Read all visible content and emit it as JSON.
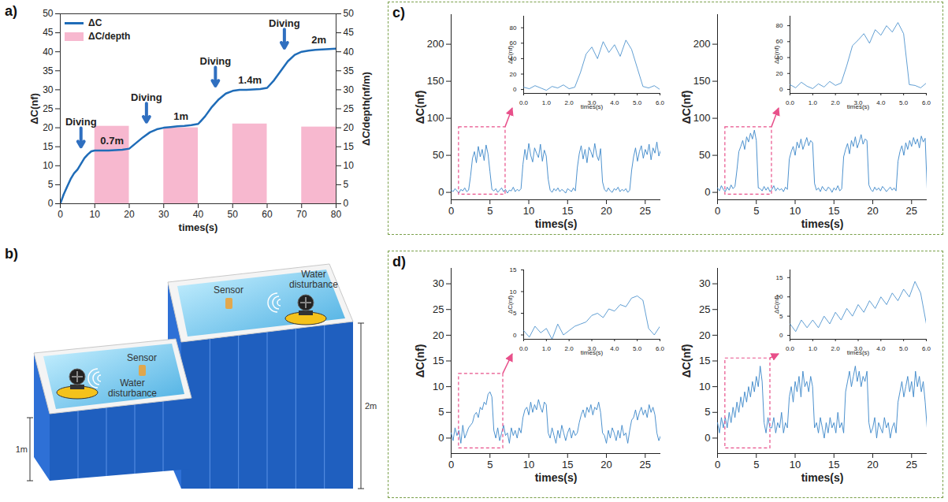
{
  "panel_labels": [
    "a)",
    "b)",
    "c)",
    "d)"
  ],
  "chart_data": [
    {
      "type": "combo",
      "x_label": "times(s)",
      "y_label": "ΔC(nf)",
      "y2_label": "ΔC/depth(nf/m)",
      "xlim": [
        0,
        80
      ],
      "xticks": [
        0,
        10,
        20,
        30,
        40,
        50,
        60,
        70,
        80
      ],
      "ylim": [
        0,
        50
      ],
      "yticks": [
        0,
        5,
        10,
        15,
        20,
        25,
        30,
        35,
        40,
        45,
        50
      ],
      "y2lim": [
        0,
        50
      ],
      "y2ticks": [
        0,
        5,
        10,
        15,
        20,
        25,
        30,
        35,
        40,
        45,
        50
      ],
      "legend": "top-left",
      "series": [
        {
          "name": "ΔC",
          "type": "line",
          "color": "#1f6cb8",
          "x": [
            0,
            1,
            2,
            3,
            4,
            5,
            6,
            7,
            8,
            9,
            10,
            12,
            14,
            16,
            18,
            20,
            22,
            24,
            26,
            28,
            30,
            32,
            34,
            36,
            38,
            40,
            42,
            44,
            46,
            48,
            50,
            52,
            54,
            56,
            58,
            60,
            62,
            64,
            66,
            68,
            70,
            72,
            74,
            76,
            78,
            80
          ],
          "values": [
            0,
            2.5,
            4.5,
            6.5,
            8,
            9,
            10.5,
            12,
            13,
            13.8,
            14,
            14,
            14,
            14.1,
            14.2,
            14.5,
            16,
            17.5,
            18.8,
            19.6,
            20,
            20.2,
            20.4,
            20.5,
            20.7,
            21,
            23,
            25.5,
            27.5,
            29,
            29.7,
            30,
            30,
            30.1,
            30.2,
            30.5,
            32.5,
            35,
            37.5,
            39.2,
            40,
            40.3,
            40.5,
            40.6,
            40.7,
            40.8
          ]
        },
        {
          "name": "ΔC/depth",
          "type": "bar",
          "axis": "y2",
          "color": "#f7b8cf",
          "x1": [
            10,
            30,
            50,
            70
          ],
          "x2": [
            20,
            40,
            60,
            80
          ],
          "values": [
            20.4,
            20,
            21,
            20.2
          ]
        }
      ],
      "annotations": [
        {
          "text": "Diving",
          "x": 6,
          "y": 21.5,
          "marker": "arrow"
        },
        {
          "text": "Diving",
          "x": 25,
          "y": 28,
          "marker": "arrow"
        },
        {
          "text": "Diving",
          "x": 45,
          "y": 37.5,
          "marker": "arrow"
        },
        {
          "text": "Diving",
          "x": 65,
          "y": 47.5,
          "marker": "arrow"
        },
        {
          "text": "0.7m",
          "x": 15,
          "y": 16.5
        },
        {
          "text": "1m",
          "x": 35,
          "y": 23
        },
        {
          "text": "1.4m",
          "x": 55,
          "y": 32.5
        },
        {
          "text": "2m",
          "x": 75,
          "y": 43
        }
      ]
    },
    {
      "type": "line",
      "x_label": "times(s)",
      "y_label": "ΔC(nf)",
      "color": "#3a86c8",
      "xlim": [
        0,
        27
      ],
      "xticks": [
        0,
        5,
        10,
        15,
        20,
        25
      ],
      "ylim": [
        -10,
        240
      ],
      "yticks": [
        0,
        50,
        100,
        150,
        200
      ],
      "x": [
        0,
        0.25,
        0.5,
        0.75,
        1,
        1.25,
        1.5,
        1.75,
        2,
        2.25,
        2.5,
        2.75,
        3,
        3.25,
        3.5,
        3.75,
        4,
        4.25,
        4.5,
        4.75,
        5,
        5.25,
        5.5,
        5.75,
        6,
        6.25,
        6.5,
        6.75,
        7,
        7.25,
        7.5,
        7.75,
        8,
        8.25,
        8.5,
        8.75,
        9,
        9.25,
        9.5,
        9.75,
        10,
        10.25,
        10.5,
        10.75,
        11,
        11.25,
        11.5,
        11.75,
        12,
        12.25,
        12.5,
        12.75,
        13,
        13.25,
        13.5,
        13.75,
        14,
        14.25,
        14.5,
        14.75,
        15,
        15.25,
        15.5,
        15.75,
        16,
        16.25,
        16.5,
        16.75,
        17,
        17.25,
        17.5,
        17.75,
        18,
        18.25,
        18.5,
        18.75,
        19,
        19.25,
        19.5,
        19.75,
        20,
        20.25,
        20.5,
        20.75,
        21,
        21.25,
        21.5,
        21.75,
        22,
        22.25,
        22.5,
        22.75,
        23,
        23.25,
        23.5,
        23.75,
        24,
        24.25,
        24.5,
        24.75,
        25,
        25.25,
        25.5,
        25.75,
        26,
        26.25,
        26.5,
        26.75,
        27
      ],
      "values": [
        3,
        1,
        5,
        2,
        -1,
        4,
        2,
        6,
        1,
        3,
        22,
        46,
        55,
        40,
        62,
        48,
        58,
        43,
        64,
        52,
        28,
        4,
        2,
        5,
        0,
        3,
        6,
        1,
        4,
        -1,
        3,
        2,
        7,
        1,
        4,
        2,
        5,
        38,
        58,
        44,
        66,
        50,
        41,
        60,
        53,
        47,
        65,
        42,
        57,
        49,
        18,
        3,
        0,
        5,
        2,
        6,
        1,
        4,
        2,
        -1,
        5,
        3,
        1,
        6,
        2,
        33,
        52,
        63,
        45,
        58,
        40,
        61,
        55,
        47,
        66,
        50,
        43,
        59,
        14,
        4,
        1,
        6,
        2,
        0,
        5,
        3,
        7,
        1,
        4,
        2,
        5,
        0,
        3,
        30,
        48,
        60,
        42,
        55,
        63,
        46,
        58,
        51,
        65,
        44,
        60,
        53,
        68,
        49,
        57
      ],
      "inset": {
        "x_label": "times(s)",
        "y_label": "ΔC(nf)",
        "xlim": [
          0,
          6
        ],
        "xticks": [
          0,
          1,
          2,
          3,
          4,
          5,
          6
        ],
        "ylim": [
          -5,
          95
        ],
        "yticks": [
          0,
          20,
          40,
          60,
          80
        ],
        "zoom_x": [
          1,
          7
        ],
        "zoom_y": [
          -3,
          88
        ],
        "color": "#e8508a"
      }
    },
    {
      "type": "line",
      "x_label": "times(s)",
      "y_label": "ΔC(nf)",
      "color": "#3a86c8",
      "xlim": [
        0,
        27
      ],
      "xticks": [
        0,
        5,
        10,
        15,
        20,
        25
      ],
      "ylim": [
        -10,
        240
      ],
      "yticks": [
        0,
        50,
        100,
        150,
        200
      ],
      "x": [
        0,
        0.25,
        0.5,
        0.75,
        1,
        1.25,
        1.5,
        1.75,
        2,
        2.25,
        2.5,
        2.75,
        3,
        3.25,
        3.5,
        3.75,
        4,
        4.25,
        4.5,
        4.75,
        5,
        5.25,
        5.5,
        5.75,
        6,
        6.25,
        6.5,
        6.75,
        7,
        7.25,
        7.5,
        7.75,
        8,
        8.25,
        8.5,
        8.75,
        9,
        9.25,
        9.5,
        9.75,
        10,
        10.25,
        10.5,
        10.75,
        11,
        11.25,
        11.5,
        11.75,
        12,
        12.25,
        12.5,
        12.75,
        13,
        13.25,
        13.5,
        13.75,
        14,
        14.25,
        14.5,
        14.75,
        15,
        15.25,
        15.5,
        15.75,
        16,
        16.25,
        16.5,
        16.75,
        17,
        17.25,
        17.5,
        17.75,
        18,
        18.25,
        18.5,
        18.75,
        19,
        19.25,
        19.5,
        19.75,
        20,
        20.25,
        20.5,
        20.75,
        21,
        21.25,
        21.5,
        21.75,
        22,
        22.25,
        22.5,
        22.75,
        23,
        23.25,
        23.5,
        23.75,
        24,
        24.25,
        24.5,
        24.75,
        25,
        25.25,
        25.5,
        25.75,
        26,
        26.25,
        26.5,
        26.75,
        27
      ],
      "values": [
        6,
        2,
        9,
        4,
        1,
        7,
        3,
        10,
        5,
        8,
        30,
        55,
        62,
        70,
        58,
        75,
        68,
        80,
        72,
        84,
        70,
        6,
        5,
        2,
        8,
        3,
        7,
        1,
        4,
        9,
        2,
        6,
        3,
        5,
        1,
        7,
        4,
        45,
        55,
        62,
        50,
        68,
        60,
        72,
        58,
        66,
        74,
        63,
        70,
        67,
        12,
        3,
        6,
        1,
        8,
        4,
        2,
        7,
        5,
        0,
        6,
        3,
        9,
        2,
        5,
        48,
        58,
        66,
        52,
        70,
        62,
        75,
        60,
        68,
        78,
        65,
        72,
        70,
        10,
        4,
        1,
        7,
        3,
        6,
        2,
        8,
        5,
        1,
        4,
        7,
        3,
        6,
        2,
        42,
        55,
        63,
        50,
        67,
        58,
        70,
        62,
        74,
        65,
        72,
        60,
        76,
        68,
        73,
        5
      ],
      "inset": {
        "x_label": "times(s)",
        "y_label": "ΔC(nf)",
        "xlim": [
          0,
          6
        ],
        "xticks": [
          0,
          1,
          2,
          3,
          4,
          5,
          6
        ],
        "ylim": [
          -5,
          92
        ],
        "yticks": [
          0,
          20,
          40,
          60,
          80
        ],
        "zoom_x": [
          1,
          7
        ],
        "zoom_y": [
          -3,
          88
        ],
        "color": "#e8508a"
      }
    },
    {
      "type": "line",
      "x_label": "times(s)",
      "y_label": "ΔC(nf)",
      "color": "#3a86c8",
      "xlim": [
        0,
        27
      ],
      "xticks": [
        0,
        5,
        10,
        15,
        20,
        25
      ],
      "ylim": [
        -3,
        33
      ],
      "yticks": [
        0,
        5,
        10,
        15,
        20,
        25,
        30
      ],
      "x": [
        0,
        0.25,
        0.5,
        0.75,
        1,
        1.25,
        1.5,
        1.75,
        2,
        2.25,
        2.5,
        2.75,
        3,
        3.25,
        3.5,
        3.75,
        4,
        4.25,
        4.5,
        4.75,
        5,
        5.25,
        5.5,
        5.75,
        6,
        6.25,
        6.5,
        6.75,
        7,
        7.25,
        7.5,
        7.75,
        8,
        8.25,
        8.5,
        8.75,
        9,
        9.25,
        9.5,
        9.75,
        10,
        10.25,
        10.5,
        10.75,
        11,
        11.25,
        11.5,
        11.75,
        12,
        12.25,
        12.5,
        12.75,
        13,
        13.25,
        13.5,
        13.75,
        14,
        14.25,
        14.5,
        14.75,
        15,
        15.25,
        15.5,
        15.75,
        16,
        16.25,
        16.5,
        16.75,
        17,
        17.25,
        17.5,
        17.75,
        18,
        18.25,
        18.5,
        18.75,
        19,
        19.25,
        19.5,
        19.75,
        20,
        20.25,
        20.5,
        20.75,
        21,
        21.25,
        21.5,
        21.75,
        22,
        22.25,
        22.5,
        22.75,
        23,
        23.25,
        23.5,
        23.75,
        24,
        24.25,
        24.5,
        24.75,
        25,
        25.25,
        25.5,
        25.75,
        26,
        26.25,
        26.5,
        26.75,
        27
      ],
      "values": [
        1,
        -0.5,
        2,
        0.5,
        1.5,
        -1,
        2.5,
        0,
        1,
        2,
        2.5,
        3,
        4.5,
        5,
        4,
        6,
        5.5,
        7,
        6.5,
        8.5,
        9,
        8,
        1.5,
        0,
        2,
        -0.5,
        1,
        2.5,
        0.5,
        1,
        -1,
        2,
        0.5,
        1.5,
        0,
        2,
        1,
        4,
        5.5,
        6,
        4.5,
        7,
        5,
        6.5,
        5.5,
        7.5,
        6,
        5,
        7,
        6.5,
        1,
        0,
        2,
        0.5,
        -1,
        1.5,
        0,
        2.5,
        1,
        -0.5,
        1,
        2,
        0,
        1.5,
        0.5,
        1,
        3,
        4.5,
        5.5,
        4,
        6,
        5,
        6.5,
        4.5,
        6,
        5.5,
        7,
        5,
        1,
        0.5,
        -1,
        1.5,
        0,
        2,
        1,
        -0.5,
        1.5,
        0,
        2.5,
        0.5,
        1,
        -1,
        1.5,
        3.5,
        4,
        5.5,
        3.5,
        5,
        6,
        4.5,
        5.5,
        4,
        6.5,
        5,
        6,
        4.5,
        1,
        -0.5,
        0.5
      ],
      "inset": {
        "x_label": "times(s)",
        "y_label": "ΔC(nf)",
        "xlim": [
          0,
          6
        ],
        "xticks": [
          0,
          1,
          2,
          3,
          4,
          5,
          6
        ],
        "ylim": [
          -1,
          15
        ],
        "yticks": [
          0,
          5,
          10,
          15
        ],
        "zoom_x": [
          1,
          6.7
        ],
        "zoom_y": [
          -2,
          12.5
        ],
        "color": "#e8508a"
      }
    },
    {
      "type": "line",
      "x_label": "times(s)",
      "y_label": "ΔC(nf)",
      "color": "#3a86c8",
      "xlim": [
        0,
        27
      ],
      "xticks": [
        0,
        5,
        10,
        15,
        20,
        25
      ],
      "ylim": [
        -3,
        33
      ],
      "yticks": [
        0,
        5,
        10,
        15,
        20,
        25,
        30
      ],
      "x": [
        0,
        0.25,
        0.5,
        0.75,
        1,
        1.25,
        1.5,
        1.75,
        2,
        2.25,
        2.5,
        2.75,
        3,
        3.25,
        3.5,
        3.75,
        4,
        4.25,
        4.5,
        4.75,
        5,
        5.25,
        5.5,
        5.75,
        6,
        6.25,
        6.5,
        6.75,
        7,
        7.25,
        7.5,
        7.75,
        8,
        8.25,
        8.5,
        8.75,
        9,
        9.25,
        9.5,
        9.75,
        10,
        10.25,
        10.5,
        10.75,
        11,
        11.25,
        11.5,
        11.75,
        12,
        12.25,
        12.5,
        12.75,
        13,
        13.25,
        13.5,
        13.75,
        14,
        14.25,
        14.5,
        14.75,
        15,
        15.25,
        15.5,
        15.75,
        16,
        16.25,
        16.5,
        16.75,
        17,
        17.25,
        17.5,
        17.75,
        18,
        18.25,
        18.5,
        18.75,
        19,
        19.25,
        19.5,
        19.75,
        20,
        20.25,
        20.5,
        20.75,
        21,
        21.25,
        21.5,
        21.75,
        22,
        22.25,
        22.5,
        22.75,
        23,
        23.25,
        23.5,
        23.75,
        24,
        24.25,
        24.5,
        24.75,
        25,
        25.25,
        25.5,
        25.75,
        26,
        26.25,
        26.5,
        26.75,
        27
      ],
      "values": [
        3,
        1,
        4,
        2,
        4,
        2,
        5,
        3,
        6,
        4,
        7,
        5,
        8,
        6,
        9,
        7,
        10,
        8,
        11,
        9,
        12,
        10,
        14,
        11,
        3,
        1,
        4,
        2,
        2,
        4,
        1,
        3,
        2,
        5,
        1,
        3,
        2,
        8,
        10,
        7,
        11,
        9,
        12,
        8,
        13,
        10,
        11,
        9,
        12,
        10,
        2,
        3,
        1,
        4,
        2,
        0,
        3,
        1,
        4,
        2,
        3,
        1,
        5,
        2,
        3,
        1,
        9,
        11,
        13,
        10,
        12,
        14,
        11,
        13,
        10,
        12,
        11,
        13,
        3,
        1,
        2,
        4,
        0,
        3,
        2,
        1,
        4,
        2,
        3,
        0,
        2,
        3,
        1,
        7,
        9,
        11,
        8,
        10,
        12,
        9,
        11,
        8,
        13,
        10,
        12,
        9,
        11,
        7,
        2
      ],
      "inset": {
        "x_label": "times(s)",
        "y_label": "ΔC(nf)",
        "xlim": [
          0,
          6
        ],
        "xticks": [
          0,
          1,
          2,
          3,
          4,
          5,
          6
        ],
        "ylim": [
          -1,
          17
        ],
        "yticks": [
          0,
          5,
          10,
          15
        ],
        "zoom_x": [
          1,
          6.8
        ],
        "zoom_y": [
          -2,
          15.5
        ],
        "color": "#e8508a"
      }
    }
  ],
  "diagram": {
    "small_pool": {
      "sensor": "Sensor",
      "disturbance": "Water disturbance",
      "depth": "1m"
    },
    "large_pool": {
      "sensor": "Sensor",
      "disturbance": "Water disturbance",
      "depth": "2m"
    }
  }
}
